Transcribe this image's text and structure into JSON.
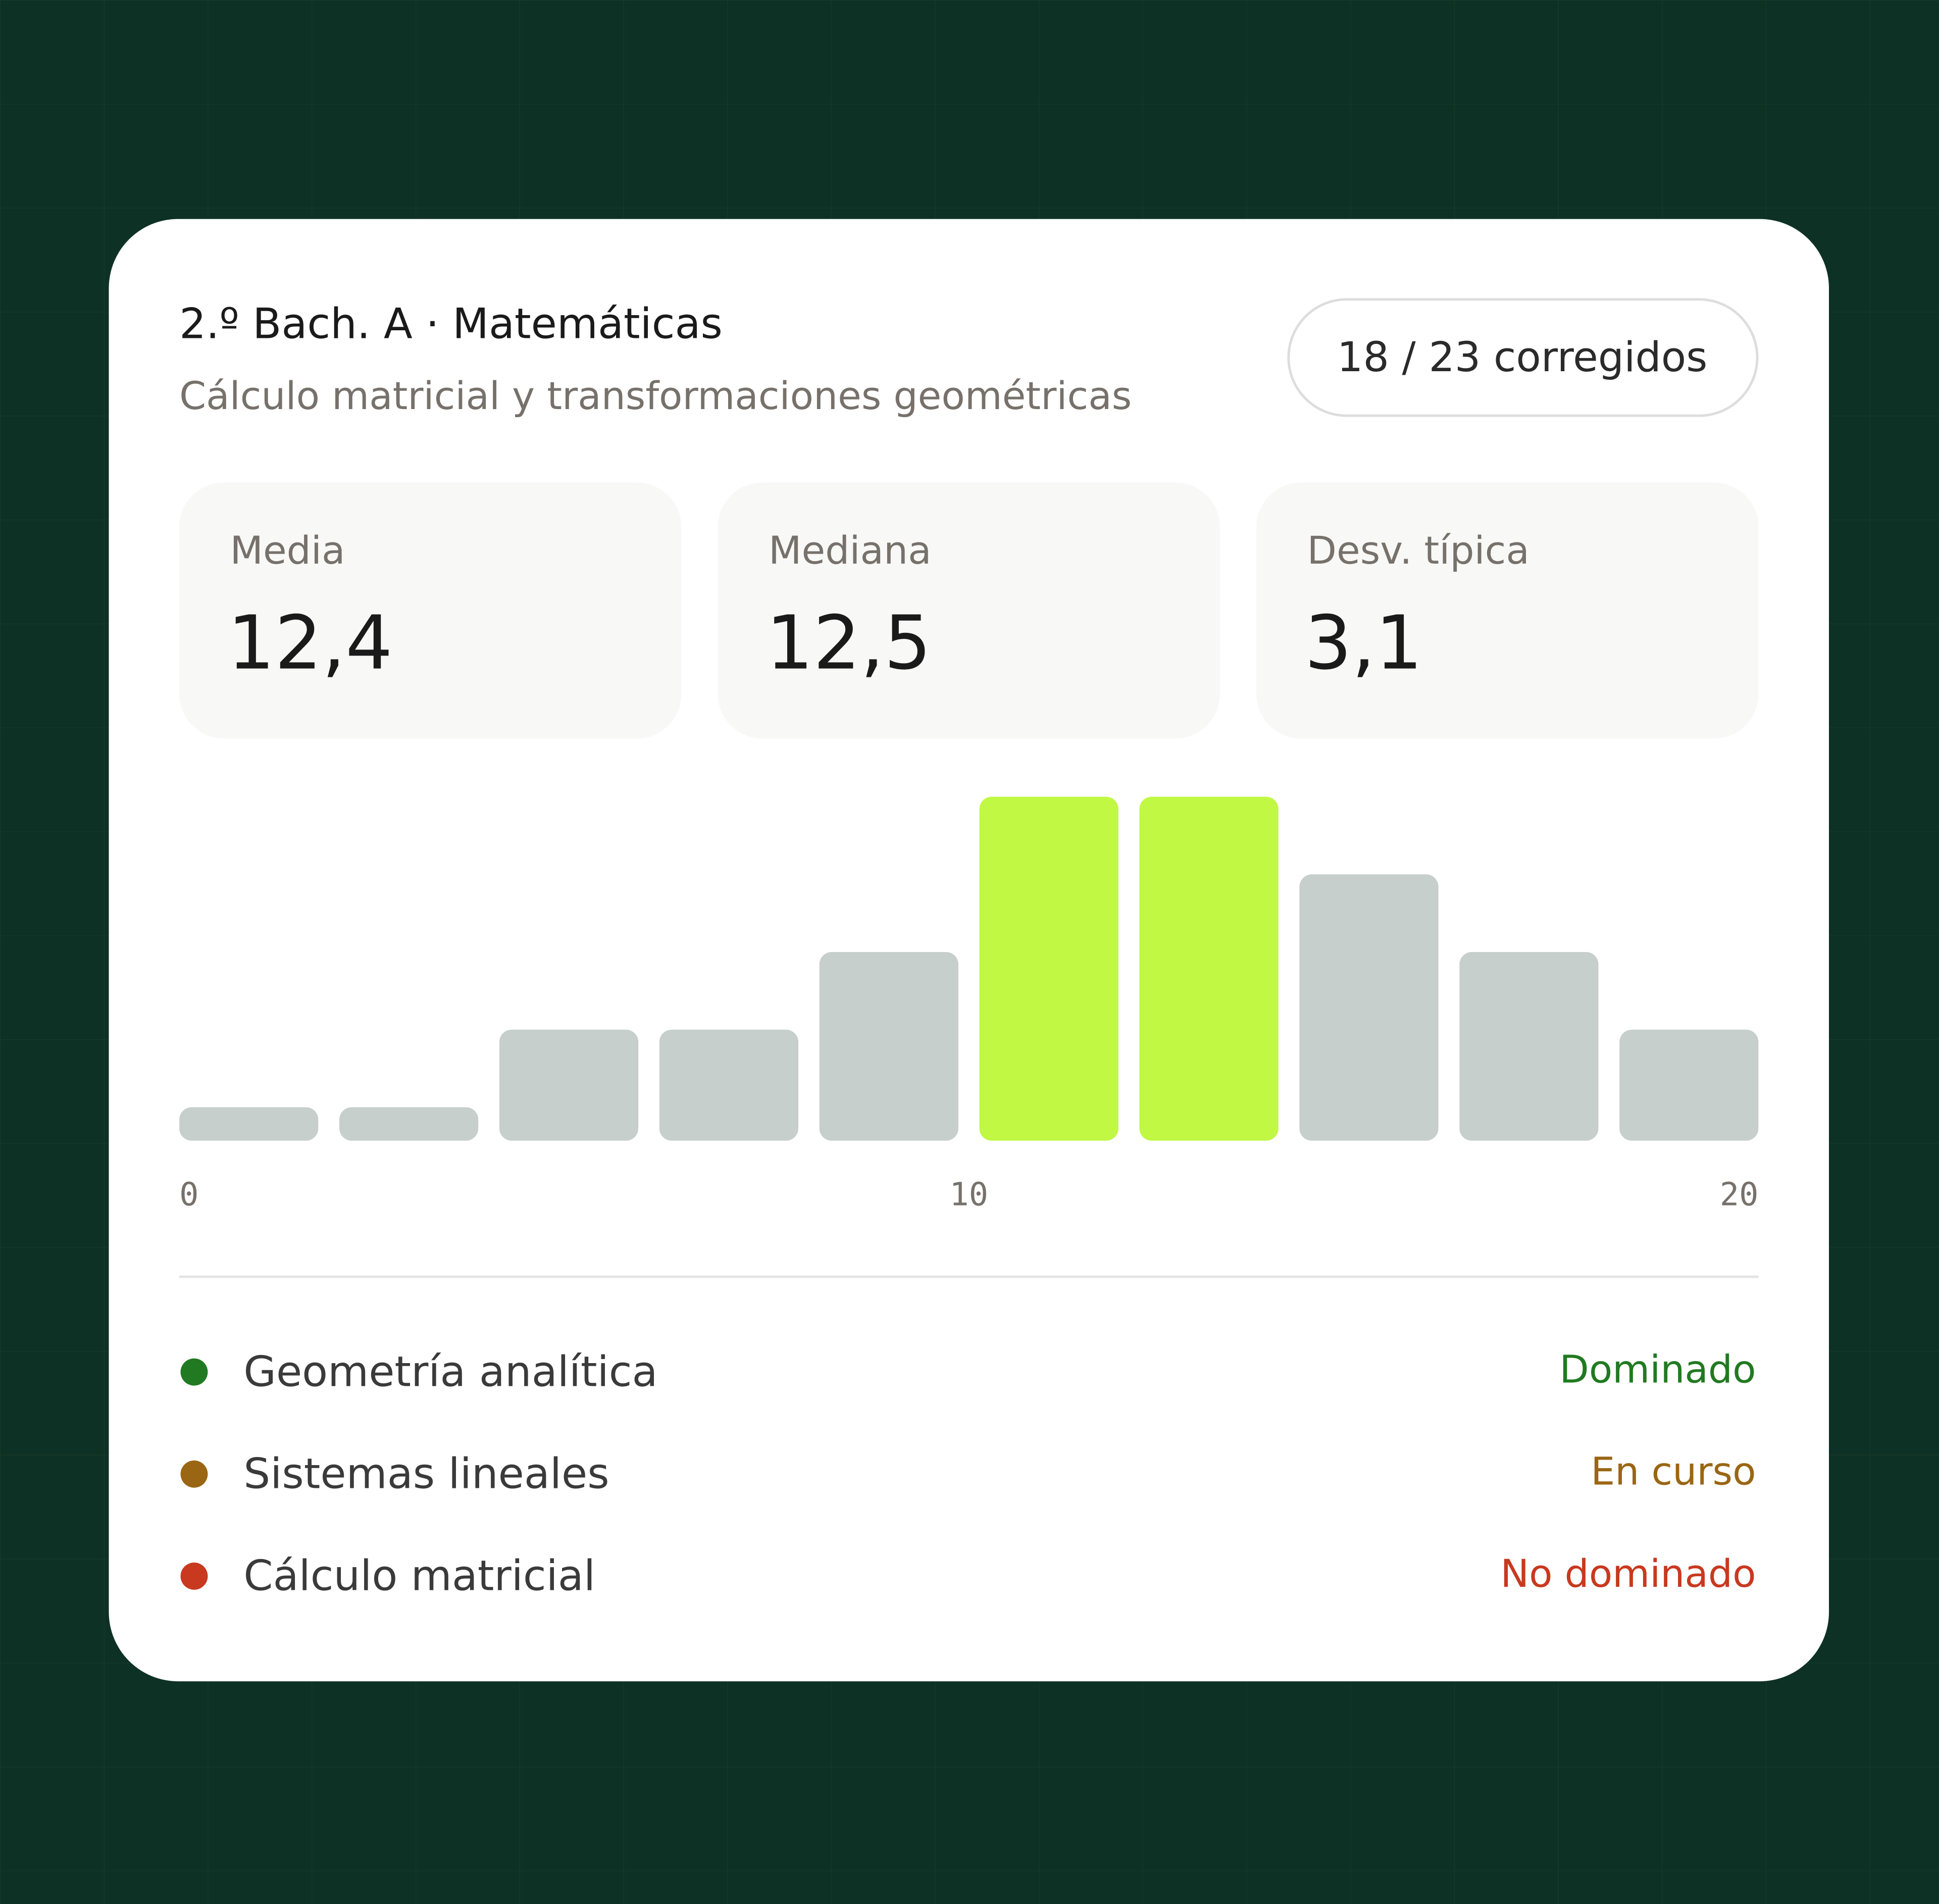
{
  "header": {
    "title": "2.º Bach. A · Matemáticas",
    "subtitle": "Cálculo matricial y transformaciones geométricas",
    "badge": "18 / 23 corregidos"
  },
  "stats": [
    {
      "label": "Media",
      "value": "12,4"
    },
    {
      "label": "Mediana",
      "value": "12,5"
    },
    {
      "label": "Desv. típica",
      "value": "3,1"
    }
  ],
  "chart_data": {
    "type": "histogram",
    "bins": [
      0,
      2,
      4,
      6,
      8,
      10,
      12,
      14,
      16,
      18,
      20
    ],
    "counts": [
      0,
      0,
      1,
      1,
      2,
      4,
      4,
      3,
      2,
      1
    ],
    "colors": [
      "#c7cfcc",
      "#c7cfcc",
      "#c7cfcc",
      "#c7cfcc",
      "#c7cfcc",
      "#c0f843",
      "#c0f843",
      "#c7cfcc",
      "#c7cfcc",
      "#c7cfcc"
    ],
    "xlim": [
      0,
      20
    ],
    "xticks": [
      0,
      10,
      20
    ]
  },
  "topics": [
    {
      "name": "Geometría analítica",
      "status": "Dominado",
      "color": "#217a21"
    },
    {
      "name": "Sistemas lineales",
      "status": "En curso",
      "color": "#9a6614"
    },
    {
      "name": "Cálculo matricial",
      "status": "No dominado",
      "color": "#c8391f"
    }
  ]
}
